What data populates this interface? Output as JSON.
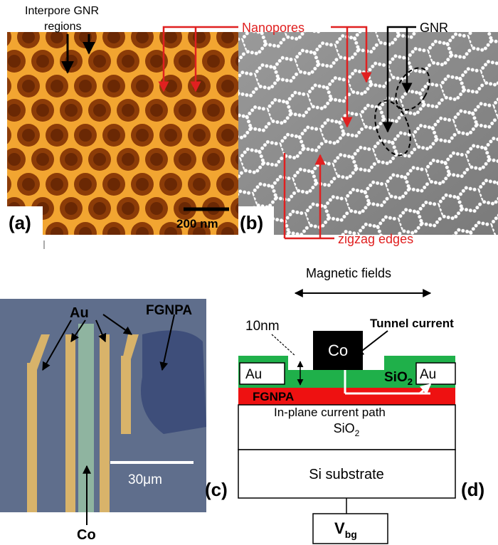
{
  "panel_a": {
    "label": "(a)",
    "annotation": [
      "Interpore GNR",
      "regions"
    ],
    "scale_bar": "200 nm"
  },
  "panel_b": {
    "label": "(b)",
    "nanopores": "Nanopores",
    "gnr": "GNR",
    "zigzag_edges": "zigzag edges"
  },
  "panel_c": {
    "label": "(c)",
    "au": "Au",
    "fgnpa": "FGNPA",
    "scale_bar": "30μm",
    "co": "Co"
  },
  "panel_d": {
    "label": "(d)",
    "magnetic_fields": "Magnetic fields",
    "thickness": "10nm",
    "co": "Co",
    "tunnel_current": "Tunnel current",
    "au_left": "Au",
    "au_right": "Au",
    "oxide_top": {
      "base": "SiO",
      "sub": "2"
    },
    "fgnpa": "FGNPA",
    "in_plane": "In-plane current path",
    "oxide_bottom": {
      "base": "SiO",
      "sub": "2"
    },
    "substrate": "Si substrate",
    "gate": {
      "base": "V",
      "sub": "bg"
    }
  }
}
